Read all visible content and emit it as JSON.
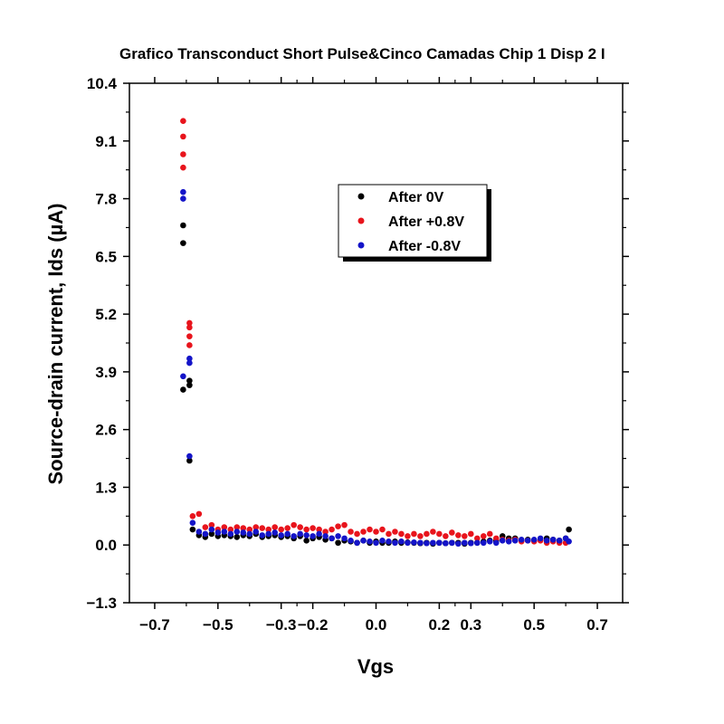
{
  "chart_data": {
    "type": "scatter",
    "title": "Grafico Transconduct Short Pulse&Cinco Camadas Chip 1 Disp 2 I",
    "xlabel": "Vgs",
    "ylabel": "Source-drain current, Ids (µA)",
    "xlim": [
      -0.78,
      0.78
    ],
    "ylim": [
      -1.3,
      10.4
    ],
    "x_ticks": [
      -0.7,
      -0.5,
      -0.3,
      -0.2,
      0.0,
      0.2,
      0.3,
      0.5,
      0.7
    ],
    "x_tick_labels": [
      "−0.7",
      "−0.5",
      "−0.3",
      "−0.2",
      "0.0",
      "0.2",
      "0.3",
      "0.5",
      "0.7"
    ],
    "y_ticks": [
      -1.3,
      0.0,
      1.3,
      2.6,
      3.9,
      5.2,
      6.5,
      7.8,
      9.1,
      10.4
    ],
    "y_tick_labels": [
      "−1.3",
      "0.0",
      "1.3",
      "2.6",
      "3.9",
      "5.2",
      "6.5",
      "7.8",
      "9.1",
      "10.4"
    ],
    "legend_position": "upper-center",
    "grid": false,
    "series": [
      {
        "name": "After 0V",
        "color": "#000000",
        "points": [
          [
            -0.61,
            3.5
          ],
          [
            -0.61,
            6.8
          ],
          [
            -0.61,
            7.2
          ],
          [
            -0.59,
            1.9
          ],
          [
            -0.59,
            3.6
          ],
          [
            -0.59,
            3.7
          ],
          [
            -0.58,
            0.35
          ],
          [
            -0.56,
            0.22
          ],
          [
            -0.54,
            0.18
          ],
          [
            -0.52,
            0.25
          ],
          [
            -0.5,
            0.2
          ],
          [
            -0.48,
            0.22
          ],
          [
            -0.46,
            0.2
          ],
          [
            -0.44,
            0.18
          ],
          [
            -0.42,
            0.22
          ],
          [
            -0.4,
            0.2
          ],
          [
            -0.38,
            0.25
          ],
          [
            -0.36,
            0.18
          ],
          [
            -0.34,
            0.2
          ],
          [
            -0.32,
            0.22
          ],
          [
            -0.3,
            0.18
          ],
          [
            -0.28,
            0.2
          ],
          [
            -0.26,
            0.15
          ],
          [
            -0.24,
            0.2
          ],
          [
            -0.22,
            0.1
          ],
          [
            -0.2,
            0.15
          ],
          [
            -0.18,
            0.18
          ],
          [
            -0.16,
            0.12
          ],
          [
            -0.14,
            0.15
          ],
          [
            -0.12,
            0.05
          ],
          [
            -0.1,
            0.1
          ],
          [
            -0.08,
            0.08
          ],
          [
            -0.06,
            0.05
          ],
          [
            -0.04,
            0.1
          ],
          [
            -0.02,
            0.05
          ],
          [
            0.0,
            0.08
          ],
          [
            0.02,
            0.05
          ],
          [
            0.04,
            0.05
          ],
          [
            0.06,
            0.08
          ],
          [
            0.08,
            0.05
          ],
          [
            0.1,
            0.06
          ],
          [
            0.12,
            0.05
          ],
          [
            0.14,
            0.04
          ],
          [
            0.16,
            0.05
          ],
          [
            0.18,
            0.03
          ],
          [
            0.2,
            0.05
          ],
          [
            0.22,
            0.04
          ],
          [
            0.24,
            0.05
          ],
          [
            0.26,
            0.05
          ],
          [
            0.28,
            0.03
          ],
          [
            0.3,
            0.05
          ],
          [
            0.32,
            0.05
          ],
          [
            0.34,
            0.08
          ],
          [
            0.36,
            0.1
          ],
          [
            0.38,
            0.1
          ],
          [
            0.4,
            0.2
          ],
          [
            0.42,
            0.15
          ],
          [
            0.44,
            0.15
          ],
          [
            0.46,
            0.1
          ],
          [
            0.48,
            0.12
          ],
          [
            0.5,
            0.1
          ],
          [
            0.52,
            0.12
          ],
          [
            0.54,
            0.15
          ],
          [
            0.56,
            0.12
          ],
          [
            0.58,
            0.1
          ],
          [
            0.6,
            0.15
          ],
          [
            0.61,
            0.35
          ]
        ]
      },
      {
        "name": "After +0.8V",
        "color": "#e8141c",
        "points": [
          [
            -0.61,
            8.5
          ],
          [
            -0.61,
            8.8
          ],
          [
            -0.61,
            9.2
          ],
          [
            -0.61,
            9.55
          ],
          [
            -0.59,
            4.5
          ],
          [
            -0.59,
            4.7
          ],
          [
            -0.59,
            4.9
          ],
          [
            -0.59,
            5.0
          ],
          [
            -0.58,
            0.65
          ],
          [
            -0.56,
            0.7
          ],
          [
            -0.54,
            0.4
          ],
          [
            -0.52,
            0.45
          ],
          [
            -0.5,
            0.35
          ],
          [
            -0.48,
            0.4
          ],
          [
            -0.46,
            0.35
          ],
          [
            -0.44,
            0.4
          ],
          [
            -0.42,
            0.38
          ],
          [
            -0.4,
            0.35
          ],
          [
            -0.38,
            0.4
          ],
          [
            -0.36,
            0.38
          ],
          [
            -0.34,
            0.35
          ],
          [
            -0.32,
            0.4
          ],
          [
            -0.3,
            0.35
          ],
          [
            -0.28,
            0.38
          ],
          [
            -0.26,
            0.45
          ],
          [
            -0.24,
            0.4
          ],
          [
            -0.22,
            0.35
          ],
          [
            -0.2,
            0.38
          ],
          [
            -0.18,
            0.35
          ],
          [
            -0.16,
            0.3
          ],
          [
            -0.14,
            0.35
          ],
          [
            -0.12,
            0.42
          ],
          [
            -0.1,
            0.45
          ],
          [
            -0.08,
            0.3
          ],
          [
            -0.06,
            0.25
          ],
          [
            -0.04,
            0.3
          ],
          [
            -0.02,
            0.35
          ],
          [
            0.0,
            0.3
          ],
          [
            0.02,
            0.35
          ],
          [
            0.04,
            0.25
          ],
          [
            0.06,
            0.3
          ],
          [
            0.08,
            0.25
          ],
          [
            0.1,
            0.2
          ],
          [
            0.12,
            0.25
          ],
          [
            0.14,
            0.2
          ],
          [
            0.16,
            0.25
          ],
          [
            0.18,
            0.3
          ],
          [
            0.2,
            0.25
          ],
          [
            0.22,
            0.2
          ],
          [
            0.24,
            0.28
          ],
          [
            0.26,
            0.22
          ],
          [
            0.28,
            0.2
          ],
          [
            0.3,
            0.25
          ],
          [
            0.32,
            0.15
          ],
          [
            0.34,
            0.2
          ],
          [
            0.36,
            0.25
          ],
          [
            0.38,
            0.15
          ],
          [
            0.4,
            0.12
          ],
          [
            0.42,
            0.1
          ],
          [
            0.44,
            0.12
          ],
          [
            0.46,
            0.08
          ],
          [
            0.48,
            0.1
          ],
          [
            0.5,
            0.08
          ],
          [
            0.52,
            0.1
          ],
          [
            0.54,
            0.05
          ],
          [
            0.56,
            0.08
          ],
          [
            0.58,
            0.05
          ],
          [
            0.6,
            0.05
          ]
        ]
      },
      {
        "name": "After -0.8V",
        "color": "#1414c8",
        "points": [
          [
            -0.61,
            3.8
          ],
          [
            -0.61,
            7.8
          ],
          [
            -0.61,
            7.95
          ],
          [
            -0.59,
            2.0
          ],
          [
            -0.59,
            4.1
          ],
          [
            -0.59,
            4.2
          ],
          [
            -0.58,
            0.5
          ],
          [
            -0.56,
            0.3
          ],
          [
            -0.54,
            0.25
          ],
          [
            -0.52,
            0.35
          ],
          [
            -0.5,
            0.28
          ],
          [
            -0.48,
            0.3
          ],
          [
            -0.46,
            0.25
          ],
          [
            -0.44,
            0.3
          ],
          [
            -0.42,
            0.28
          ],
          [
            -0.4,
            0.25
          ],
          [
            -0.38,
            0.3
          ],
          [
            -0.36,
            0.22
          ],
          [
            -0.34,
            0.25
          ],
          [
            -0.32,
            0.28
          ],
          [
            -0.3,
            0.22
          ],
          [
            -0.28,
            0.25
          ],
          [
            -0.26,
            0.2
          ],
          [
            -0.24,
            0.25
          ],
          [
            -0.22,
            0.22
          ],
          [
            -0.2,
            0.2
          ],
          [
            -0.18,
            0.25
          ],
          [
            -0.16,
            0.2
          ],
          [
            -0.14,
            0.15
          ],
          [
            -0.12,
            0.2
          ],
          [
            -0.1,
            0.15
          ],
          [
            -0.08,
            0.1
          ],
          [
            -0.06,
            0.05
          ],
          [
            -0.04,
            0.1
          ],
          [
            -0.02,
            0.08
          ],
          [
            0.0,
            0.05
          ],
          [
            0.02,
            0.1
          ],
          [
            0.04,
            0.08
          ],
          [
            0.06,
            0.05
          ],
          [
            0.08,
            0.08
          ],
          [
            0.1,
            0.05
          ],
          [
            0.12,
            0.06
          ],
          [
            0.14,
            0.05
          ],
          [
            0.16,
            0.04
          ],
          [
            0.18,
            0.05
          ],
          [
            0.2,
            0.05
          ],
          [
            0.22,
            0.04
          ],
          [
            0.24,
            0.05
          ],
          [
            0.26,
            0.03
          ],
          [
            0.28,
            0.05
          ],
          [
            0.3,
            0.04
          ],
          [
            0.32,
            0.05
          ],
          [
            0.34,
            0.05
          ],
          [
            0.36,
            0.08
          ],
          [
            0.38,
            0.05
          ],
          [
            0.4,
            0.1
          ],
          [
            0.42,
            0.08
          ],
          [
            0.44,
            0.1
          ],
          [
            0.46,
            0.12
          ],
          [
            0.48,
            0.1
          ],
          [
            0.5,
            0.12
          ],
          [
            0.52,
            0.15
          ],
          [
            0.54,
            0.1
          ],
          [
            0.56,
            0.12
          ],
          [
            0.58,
            0.1
          ],
          [
            0.6,
            0.15
          ],
          [
            0.61,
            0.08
          ]
        ]
      }
    ]
  }
}
